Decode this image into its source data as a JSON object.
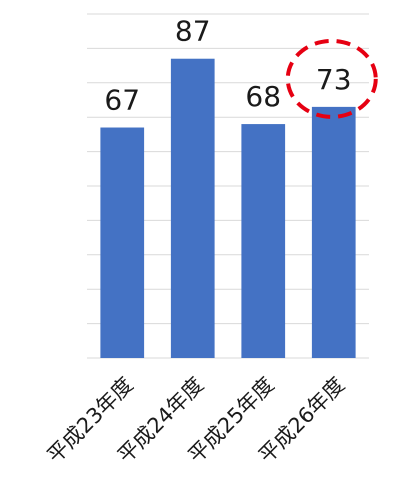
{
  "chart_data": {
    "type": "bar",
    "categories": [
      "平成23年度",
      "平成24年度",
      "平成25年度",
      "平成26年度"
    ],
    "values": [
      67,
      87,
      68,
      73
    ],
    "title": "",
    "xlabel": "",
    "ylabel": "",
    "ylim": [
      0,
      100
    ],
    "grid": true,
    "legend": "none",
    "highlighted_category": "平成26年度",
    "colors": {
      "bar": "#4472c4",
      "grid": "#d9d9d9",
      "highlight": "#e60012"
    }
  }
}
